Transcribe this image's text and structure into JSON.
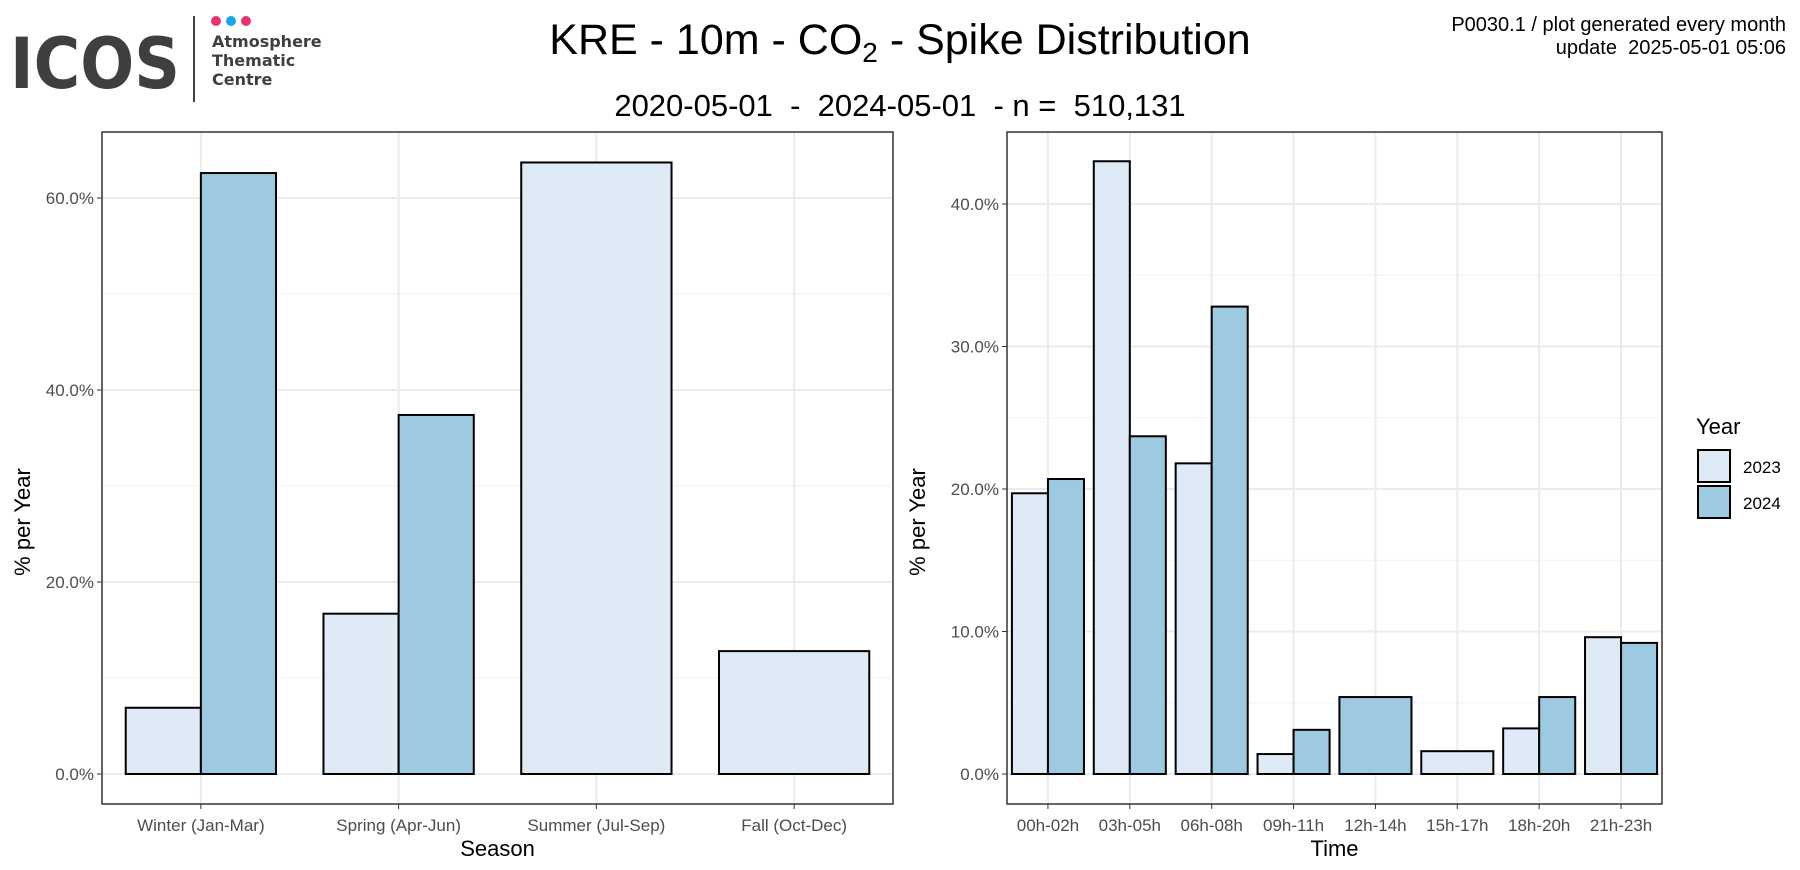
{
  "logo": {
    "wordmark": "ICOS",
    "lines": [
      "Atmosphere",
      "Thematic",
      "Centre"
    ],
    "dot_colors": [
      "#e8336f",
      "#1aa6e4",
      "#e8336f"
    ],
    "text_color": "#3f3f3f"
  },
  "header": {
    "title_prefix": "KRE - 10m - CO",
    "title_sub": "2",
    "title_suffix": " - Spike Distribution",
    "subtitle": "2020-05-01  -  2024-05-01  - n =  510,131",
    "meta_line1": "P0030.1 / plot generated every month",
    "meta_line2": "update  2025-05-01 05:06"
  },
  "legend": {
    "title": "Year",
    "items": [
      {
        "label": "2023",
        "color": "#deebf7"
      },
      {
        "label": "2024",
        "color": "#9ecae1"
      }
    ]
  },
  "chart_data": [
    {
      "type": "bar",
      "xlabel": "Season",
      "ylabel": "% per Year",
      "ylim": [
        0,
        66
      ],
      "yticks": [
        0,
        20,
        40,
        60
      ],
      "ytick_labels": [
        "0.0%",
        "20.0%",
        "40.0%",
        "60.0%"
      ],
      "grid": true,
      "categories": [
        "Winter (Jan-Mar)",
        "Spring (Apr-Jun)",
        "Summer (Jul-Sep)",
        "Fall (Oct-Dec)"
      ],
      "series": [
        {
          "name": "2023",
          "values": [
            6.9,
            16.7,
            63.7,
            12.8
          ]
        },
        {
          "name": "2024",
          "values": [
            62.6,
            37.4,
            null,
            null
          ]
        }
      ]
    },
    {
      "type": "bar",
      "xlabel": "Time",
      "ylabel": "% per Year",
      "ylim": [
        0,
        43
      ],
      "yticks": [
        0,
        10,
        20,
        30,
        40
      ],
      "ytick_labels": [
        "0.0%",
        "10.0%",
        "20.0%",
        "30.0%",
        "40.0%"
      ],
      "grid": true,
      "categories": [
        "00h-02h",
        "03h-05h",
        "06h-08h",
        "09h-11h",
        "12h-14h",
        "15h-17h",
        "18h-20h",
        "21h-23h"
      ],
      "series": [
        {
          "name": "2023",
          "values": [
            19.7,
            43.0,
            21.8,
            1.4,
            null,
            1.6,
            3.2,
            9.6
          ]
        },
        {
          "name": "2024",
          "values": [
            20.7,
            23.7,
            32.8,
            3.1,
            5.4,
            null,
            5.4,
            9.2
          ]
        }
      ]
    }
  ]
}
